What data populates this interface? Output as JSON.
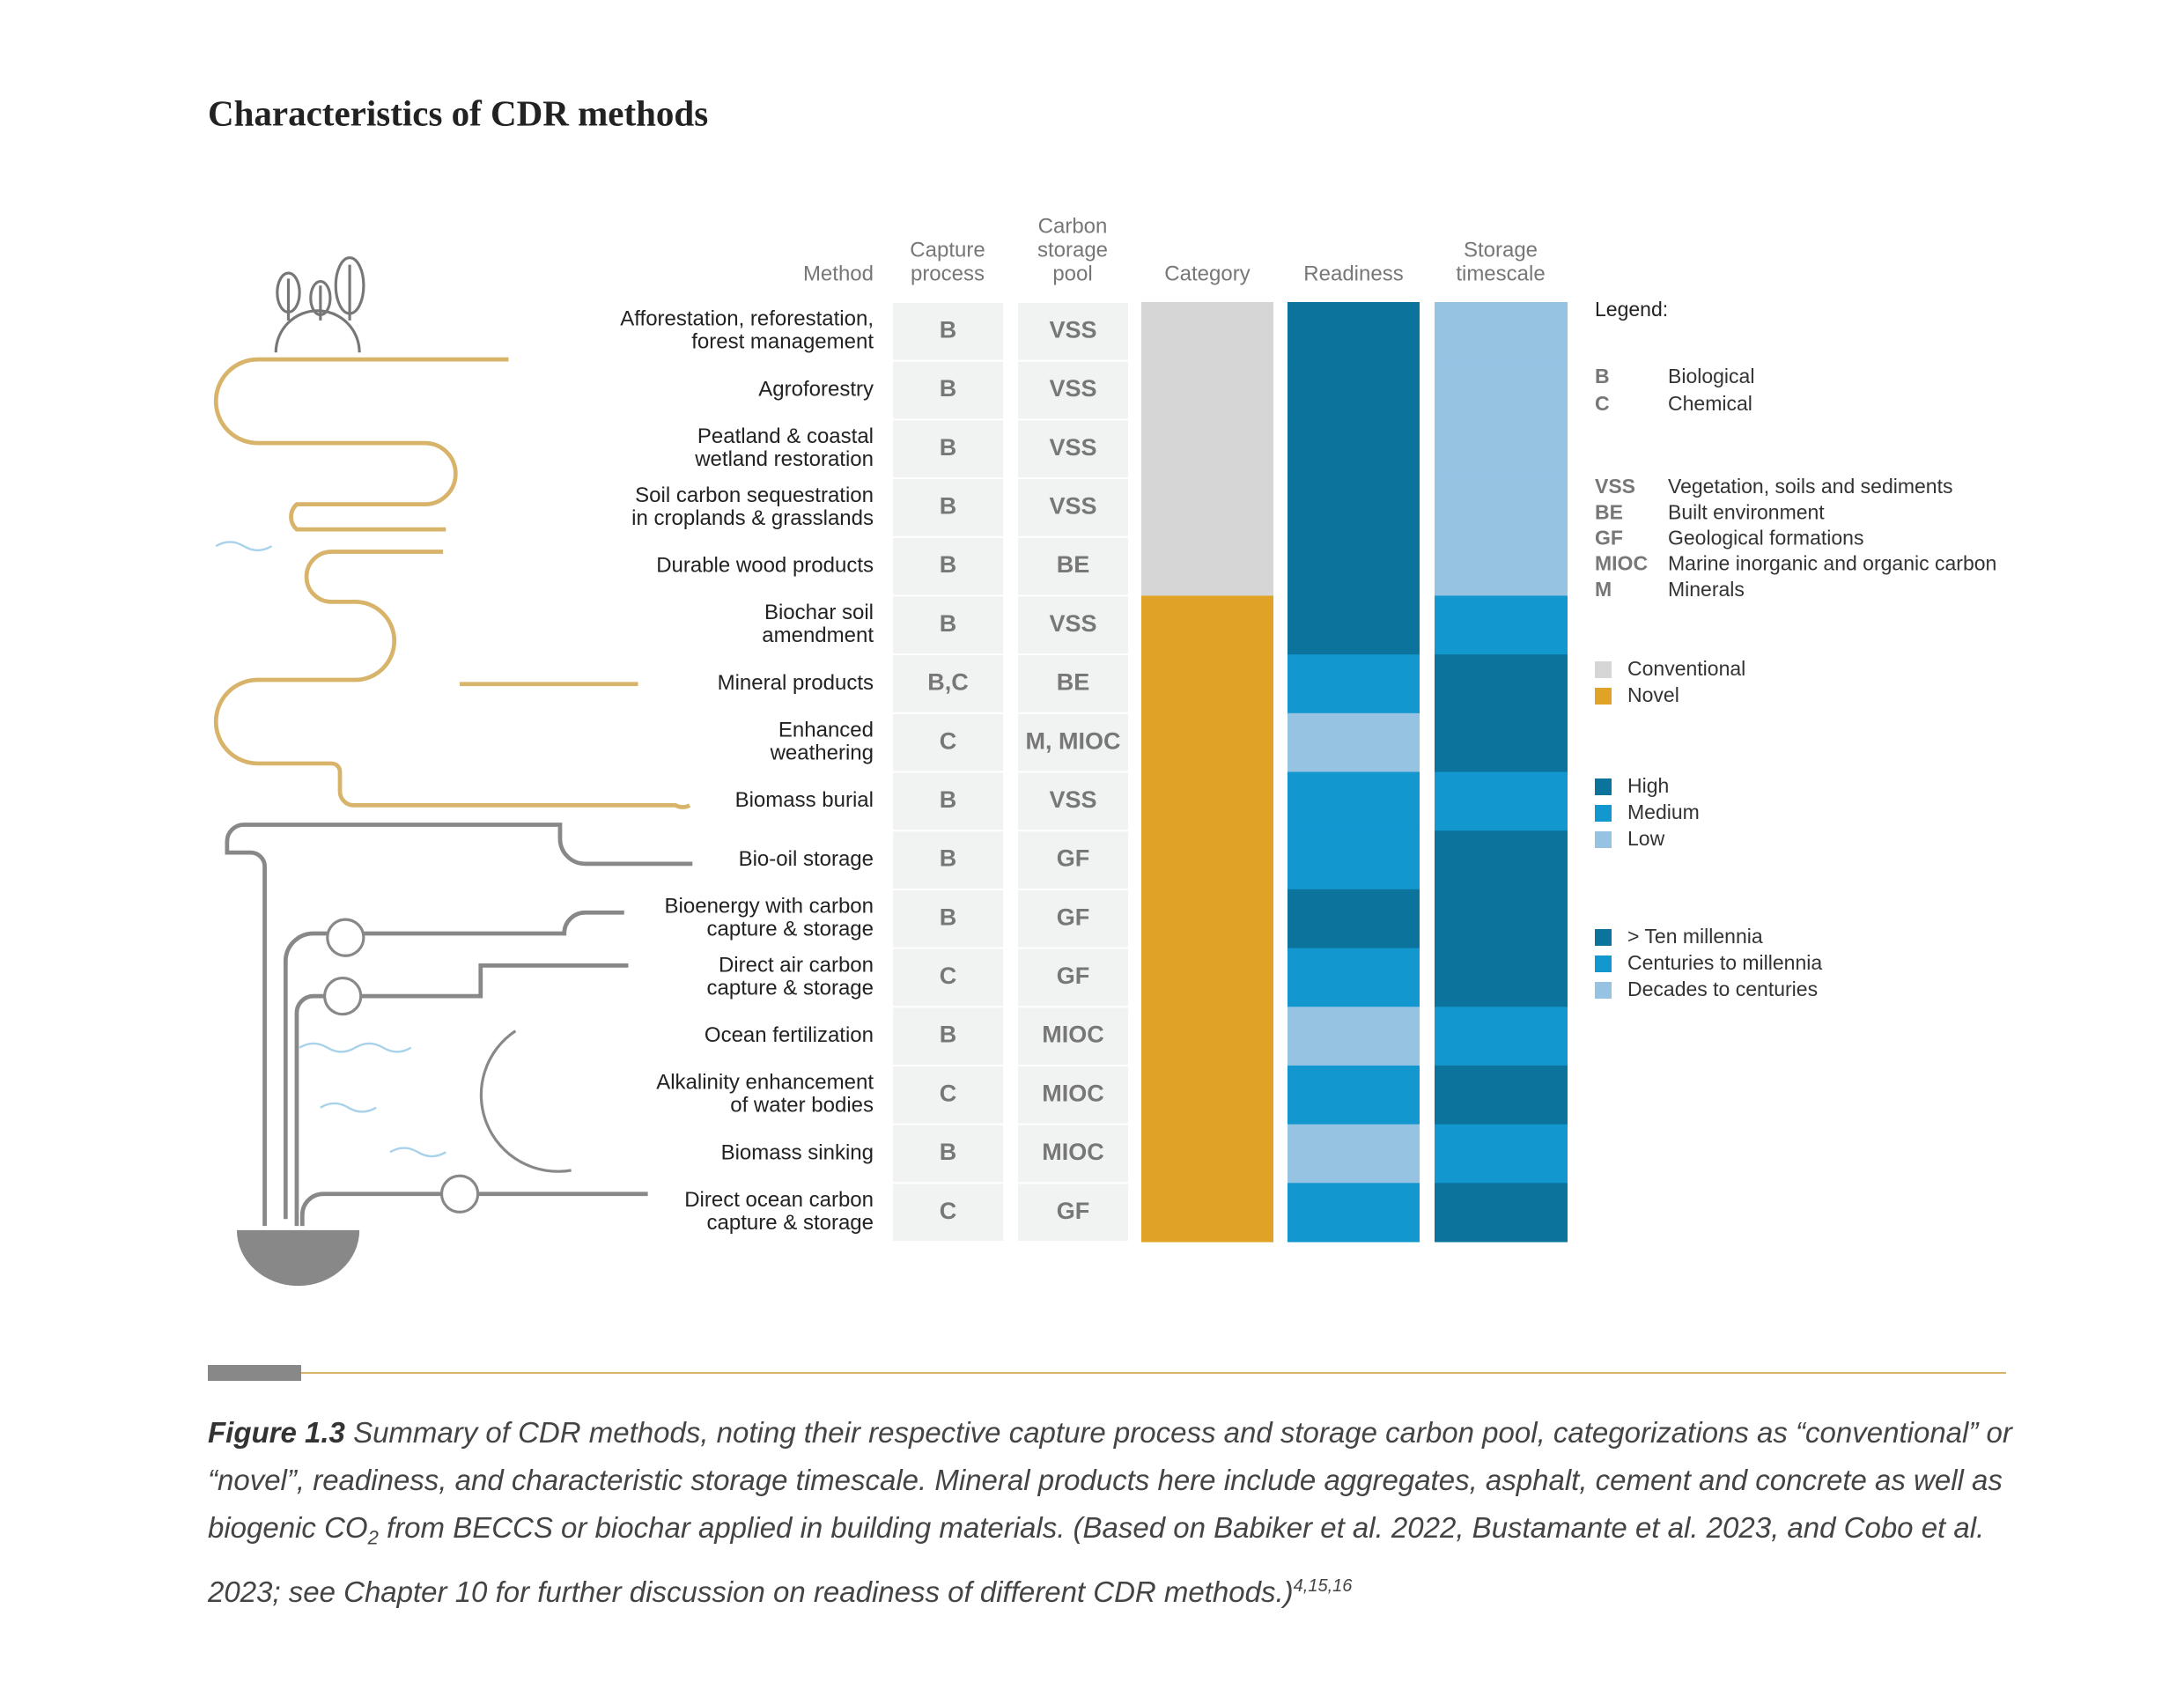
{
  "title": "Characteristics of CDR methods",
  "headers": {
    "method": [
      "Method"
    ],
    "capture": [
      "Capture",
      "process"
    ],
    "pool": [
      "Carbon",
      "storage",
      "pool"
    ],
    "category": [
      "Category"
    ],
    "readiness": [
      "Readiness"
    ],
    "timescale": [
      "Storage",
      "timescale"
    ]
  },
  "rows": [
    {
      "method": [
        "Afforestation, reforestation,",
        "forest management"
      ],
      "capture": "B",
      "pool": "VSS",
      "category": "Conventional",
      "readiness": "High",
      "timescale": "Decades to centuries"
    },
    {
      "method": [
        "Agroforestry"
      ],
      "capture": "B",
      "pool": "VSS",
      "category": "Conventional",
      "readiness": "High",
      "timescale": "Decades to centuries"
    },
    {
      "method": [
        "Peatland & coastal",
        "wetland restoration"
      ],
      "capture": "B",
      "pool": "VSS",
      "category": "Conventional",
      "readiness": "High",
      "timescale": "Decades to centuries"
    },
    {
      "method": [
        "Soil carbon sequestration",
        "in croplands & grasslands"
      ],
      "capture": "B",
      "pool": "VSS",
      "category": "Conventional",
      "readiness": "High",
      "timescale": "Decades to centuries"
    },
    {
      "method": [
        "Durable wood products"
      ],
      "capture": "B",
      "pool": "BE",
      "category": "Conventional",
      "readiness": "High",
      "timescale": "Decades to centuries"
    },
    {
      "method": [
        "Biochar soil",
        "amendment"
      ],
      "capture": "B",
      "pool": "VSS",
      "category": "Novel",
      "readiness": "High",
      "timescale": "Centuries to millennia"
    },
    {
      "method": [
        "Mineral products"
      ],
      "capture": "B,C",
      "pool": "BE",
      "category": "Novel",
      "readiness": "Medium",
      "timescale": "> Ten millennia"
    },
    {
      "method": [
        "Enhanced",
        "weathering"
      ],
      "capture": "C",
      "pool": "M, MIOC",
      "category": "Novel",
      "readiness": "Low",
      "timescale": "> Ten millennia"
    },
    {
      "method": [
        "Biomass burial"
      ],
      "capture": "B",
      "pool": "VSS",
      "category": "Novel",
      "readiness": "Medium",
      "timescale": "Centuries to millennia"
    },
    {
      "method": [
        "Bio-oil storage"
      ],
      "capture": "B",
      "pool": "GF",
      "category": "Novel",
      "readiness": "Medium",
      "timescale": "> Ten millennia"
    },
    {
      "method": [
        "Bioenergy with carbon",
        "capture & storage"
      ],
      "capture": "B",
      "pool": "GF",
      "category": "Novel",
      "readiness": "High",
      "timescale": "> Ten millennia"
    },
    {
      "method": [
        "Direct air carbon",
        "capture & storage"
      ],
      "capture": "C",
      "pool": "GF",
      "category": "Novel",
      "readiness": "Medium",
      "timescale": "> Ten millennia"
    },
    {
      "method": [
        "Ocean fertilization"
      ],
      "capture": "B",
      "pool": "MIOC",
      "category": "Novel",
      "readiness": "Low",
      "timescale": "Centuries to millennia"
    },
    {
      "method": [
        "Alkalinity enhancement",
        "of water bodies"
      ],
      "capture": "C",
      "pool": "MIOC",
      "category": "Novel",
      "readiness": "Medium",
      "timescale": "> Ten millennia"
    },
    {
      "method": [
        "Biomass sinking"
      ],
      "capture": "B",
      "pool": "MIOC",
      "category": "Novel",
      "readiness": "Low",
      "timescale": "Centuries to millennia"
    },
    {
      "method": [
        "Direct ocean carbon",
        "capture & storage"
      ],
      "capture": "C",
      "pool": "GF",
      "category": "Novel",
      "readiness": "Medium",
      "timescale": "> Ten millennia"
    }
  ],
  "legend": {
    "title": "Legend:",
    "capture": [
      {
        "code": "B",
        "label": "Biological"
      },
      {
        "code": "C",
        "label": "Chemical"
      }
    ],
    "pool": [
      {
        "code": "VSS",
        "label": "Vegetation, soils and sediments"
      },
      {
        "code": "BE",
        "label": "Built environment"
      },
      {
        "code": "GF",
        "label": "Geological formations"
      },
      {
        "code": "MIOC",
        "label": "Marine inorganic and organic carbon"
      },
      {
        "code": "M",
        "label": "Minerals"
      }
    ],
    "category": [
      {
        "label": "Conventional",
        "color": "#d6d6d6"
      },
      {
        "label": "Novel",
        "color": "#e0a227"
      }
    ],
    "readiness": [
      {
        "label": "High",
        "color": "#0b739c"
      },
      {
        "label": "Medium",
        "color": "#1297cf"
      },
      {
        "label": "Low",
        "color": "#97c3e3"
      }
    ],
    "timescale": [
      {
        "label": "> Ten millennia",
        "color": "#0b739c"
      },
      {
        "label": "Centuries to millennia",
        "color": "#1297cf"
      },
      {
        "label": "Decades to centuries",
        "color": "#97c3e3"
      }
    ]
  },
  "caption": {
    "label": "Figure 1.3",
    "text": "Summary of CDR methods, noting their respective capture process and storage carbon pool, categorizations as “conventional” or “novel”, readiness, and characteristic storage timescale. Mineral products here include aggregates, asphalt, cement and concrete as well as biogenic CO",
    "subscript": "2",
    "text_after": " from BECCS or biochar applied in building materials. (Based on Babiker et al. 2022, Bustamante et al. 2023, and Cobo et al. 2023; see Chapter 10 for further discussion on readiness of different CDR methods.)",
    "refs": "4,15,16"
  }
}
